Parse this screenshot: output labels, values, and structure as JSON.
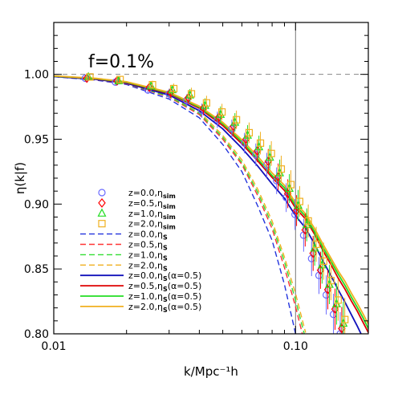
{
  "chart_data": {
    "type": "line",
    "annotation": "f=0.1%",
    "xlabel": "k/Mpc⁻¹h",
    "ylabel": "η(k|f)",
    "xscale": "log",
    "xlim": [
      0.01,
      0.2
    ],
    "ylim": [
      0.8,
      1.04
    ],
    "xticks": [
      0.01,
      0.1
    ],
    "xtick_labels": [
      "0.01",
      "0.10"
    ],
    "yticks": [
      0.8,
      0.85,
      0.9,
      0.95,
      1.0
    ],
    "ytick_labels": [
      "0.80",
      "0.85",
      "0.90",
      "0.95",
      "1.00"
    ],
    "reference_lines": {
      "horizontal_y": 1.0,
      "vertical_x": 0.1
    },
    "legend_placement": "lower-left",
    "legend": [
      {
        "label": "z=0.0,ηsim",
        "main": "z=0.0,η",
        "sub": "sim",
        "tail": "",
        "style": "circle",
        "color": "#6a6aff"
      },
      {
        "label": "z=0.5,ηsim",
        "main": "z=0.5,η",
        "sub": "sim",
        "tail": "",
        "style": "diamond",
        "color": "#ff0000"
      },
      {
        "label": "z=1.0,ηsim",
        "main": "z=1.0,η",
        "sub": "sim",
        "tail": "",
        "style": "triangle",
        "color": "#22dd22"
      },
      {
        "label": "z=2.0,ηsim",
        "main": "z=2.0,η",
        "sub": "sim",
        "tail": "",
        "style": "square",
        "color": "#f0b020"
      },
      {
        "label": "z=0.0,ηS",
        "main": "z=0.0,η",
        "sub": "S",
        "tail": "",
        "style": "dash",
        "color": "#2233dd"
      },
      {
        "label": "z=0.5,ηS",
        "main": "z=0.5,η",
        "sub": "S",
        "tail": "",
        "style": "dash",
        "color": "#ff3333"
      },
      {
        "label": "z=1.0,ηS",
        "main": "z=1.0,η",
        "sub": "S",
        "tail": "",
        "style": "dash",
        "color": "#33dd33"
      },
      {
        "label": "z=2.0,ηS",
        "main": "z=2.0,η",
        "sub": "S",
        "tail": "",
        "style": "dash",
        "color": "#f0b020"
      },
      {
        "label": "z=0.0,ηS(α=0.5)",
        "main": "z=0.0,η",
        "sub": "S",
        "tail": "(α=0.5)",
        "style": "solid",
        "color": "#1111bb"
      },
      {
        "label": "z=0.5,ηS(α=0.5)",
        "main": "z=0.5,η",
        "sub": "S",
        "tail": "(α=0.5)",
        "style": "solid",
        "color": "#dd0000"
      },
      {
        "label": "z=1.0,ηS(α=0.5)",
        "main": "z=1.0,η",
        "sub": "S",
        "tail": "(α=0.5)",
        "style": "solid",
        "color": "#22dd22"
      },
      {
        "label": "z=2.0,ηS(α=0.5)",
        "main": "z=2.0,η",
        "sub": "S",
        "tail": "(α=0.5)",
        "style": "solid",
        "color": "#f0b020"
      }
    ],
    "markers": {
      "k": [
        0.0135,
        0.018,
        0.0245,
        0.03,
        0.0355,
        0.041,
        0.0475,
        0.0545,
        0.0615,
        0.0685,
        0.076,
        0.0835,
        0.0915,
        0.0995,
        0.108,
        0.1165,
        0.125,
        0.134,
        0.1435,
        0.153
      ],
      "series": [
        {
          "name": "z=0.0,ηsim",
          "style": "circle",
          "color": "#6a6aff",
          "dk": 0.0,
          "y": [
            0.997,
            0.994,
            0.988,
            0.985,
            0.98,
            0.972,
            0.965,
            0.958,
            0.947,
            0.938,
            0.93,
            0.918,
            0.905,
            0.892,
            0.876,
            0.858,
            0.845,
            0.83,
            0.815,
            0.8
          ]
        },
        {
          "name": "z=0.5,ηsim",
          "style": "diamond",
          "color": "#ff0000",
          "dk": 0.015,
          "y": [
            0.997,
            0.995,
            0.99,
            0.986,
            0.982,
            0.974,
            0.967,
            0.96,
            0.95,
            0.941,
            0.933,
            0.921,
            0.908,
            0.895,
            0.88,
            0.862,
            0.849,
            0.834,
            0.819,
            0.804
          ]
        },
        {
          "name": "z=1.0,ηsim",
          "style": "triangle",
          "color": "#22dd22",
          "dk": 0.03,
          "y": [
            0.998,
            0.995,
            0.991,
            0.988,
            0.984,
            0.976,
            0.969,
            0.963,
            0.953,
            0.944,
            0.936,
            0.924,
            0.912,
            0.899,
            0.884,
            0.866,
            0.853,
            0.838,
            0.823,
            0.808
          ]
        },
        {
          "name": "z=2.0,ηsim",
          "style": "square",
          "color": "#f0b020",
          "dk": 0.045,
          "y": [
            0.998,
            0.996,
            0.992,
            0.989,
            0.985,
            0.978,
            0.971,
            0.965,
            0.955,
            0.947,
            0.939,
            0.927,
            0.915,
            0.902,
            0.887,
            0.869,
            0.856,
            0.841,
            0.826,
            0.811
          ]
        }
      ]
    },
    "curves": {
      "k": [
        0.01,
        0.015,
        0.02,
        0.03,
        0.04,
        0.05,
        0.06,
        0.07,
        0.08,
        0.09,
        0.1,
        0.11,
        0.12,
        0.13,
        0.14,
        0.15,
        0.16,
        0.17,
        0.18,
        0.19,
        0.2
      ],
      "series": [
        {
          "name": "z=0.0,ηS",
          "style": "dash",
          "color": "#2233dd",
          "y": [
            0.9982,
            0.9955,
            0.9922,
            0.981,
            0.9665,
            0.946,
            0.925,
            0.898,
            0.872,
            0.838,
            0.8,
            null,
            null,
            null,
            null,
            null,
            null,
            null,
            null,
            null,
            null
          ]
        },
        {
          "name": "z=0.5,ηS",
          "style": "dash",
          "color": "#ff3333",
          "y": [
            0.9984,
            0.9959,
            0.9927,
            0.9825,
            0.969,
            0.95,
            0.9305,
            0.906,
            0.881,
            0.851,
            0.821,
            0.79,
            null,
            null,
            null,
            null,
            null,
            null,
            null,
            null,
            null
          ]
        },
        {
          "name": "z=1.0,ηS",
          "style": "dash",
          "color": "#33dd33",
          "y": [
            0.9985,
            0.9961,
            0.993,
            0.983,
            0.97,
            0.9515,
            0.932,
            0.9085,
            0.884,
            0.8555,
            0.826,
            0.796,
            null,
            null,
            null,
            null,
            null,
            null,
            null,
            null,
            null
          ]
        },
        {
          "name": "z=2.0,ηS",
          "style": "dash",
          "color": "#f0b020",
          "y": [
            0.9986,
            0.9963,
            0.9933,
            0.9838,
            0.9712,
            0.953,
            0.934,
            0.911,
            0.887,
            0.859,
            0.831,
            0.801,
            null,
            null,
            null,
            null,
            null,
            null,
            null,
            null,
            null
          ]
        },
        {
          "name": "z=0.0,ηS(α=0.5)",
          "style": "solid",
          "color": "#1111bb",
          "y": [
            0.9984,
            0.9961,
            0.9932,
            0.984,
            0.972,
            0.958,
            0.943,
            0.929,
            0.9155,
            0.9045,
            0.891,
            0.8815,
            0.869,
            0.856,
            0.845,
            0.834,
            0.8245,
            0.815,
            0.806,
            0.797,
            0.788
          ]
        },
        {
          "name": "z=0.5,ηS(α=0.5)",
          "style": "solid",
          "color": "#dd0000",
          "y": [
            0.9986,
            0.9965,
            0.9937,
            0.9852,
            0.9738,
            0.9605,
            0.9465,
            0.933,
            0.9205,
            0.9105,
            0.897,
            0.8885,
            0.8765,
            0.864,
            0.8535,
            0.843,
            0.8345,
            0.8255,
            0.8175,
            0.809,
            0.801
          ]
        },
        {
          "name": "z=1.0,ηS(α=0.5)",
          "style": "solid",
          "color": "#22dd22",
          "y": [
            0.9987,
            0.9967,
            0.994,
            0.9857,
            0.9747,
            0.962,
            0.948,
            0.9345,
            0.922,
            0.9125,
            0.899,
            0.8905,
            0.8785,
            0.8665,
            0.856,
            0.846,
            0.8375,
            0.8285,
            0.8205,
            0.8125,
            0.804
          ]
        },
        {
          "name": "z=2.0,ηS(α=0.5)",
          "style": "solid",
          "color": "#f0b020",
          "y": [
            0.9988,
            0.9969,
            0.9943,
            0.9862,
            0.9755,
            0.963,
            0.9495,
            0.9365,
            0.924,
            0.9145,
            0.901,
            0.8925,
            0.881,
            0.869,
            0.8585,
            0.8485,
            0.8405,
            0.8315,
            0.8235,
            0.8155,
            0.8075
          ]
        }
      ]
    }
  }
}
